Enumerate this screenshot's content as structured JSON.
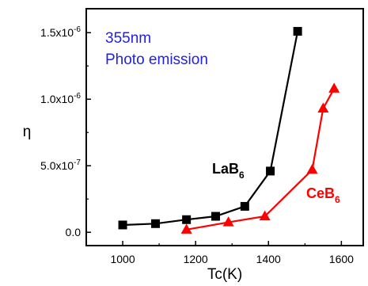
{
  "chart_data": {
    "type": "line",
    "title": "",
    "xlabel": "Tc(K)",
    "ylabel": "η",
    "xlim": [
      900,
      1660
    ],
    "ylim": [
      -1e-07,
      1.68e-06
    ],
    "x_ticks": [
      {
        "value": 1000,
        "label": "1000"
      },
      {
        "value": 1200,
        "label": "1200"
      },
      {
        "value": 1400,
        "label": "1400"
      },
      {
        "value": 1600,
        "label": "1600"
      }
    ],
    "y_ticks": [
      {
        "value": 0,
        "base": "0.0",
        "exp": ""
      },
      {
        "value": 5e-07,
        "base": "5.0x10",
        "exp": "-7"
      },
      {
        "value": 1e-06,
        "base": "1.0x10",
        "exp": "-6"
      },
      {
        "value": 1.5e-06,
        "base": "1.5x10",
        "exp": "-6"
      }
    ],
    "annotation": {
      "line1": "355nm",
      "line2": "Photo emission",
      "color": "#1f1fe6"
    },
    "series": [
      {
        "name": "LaB6",
        "label_main": "LaB",
        "label_sub": "6",
        "color": "#000000",
        "marker": "square",
        "points": [
          {
            "x": 1000,
            "y": 5.5e-08
          },
          {
            "x": 1090,
            "y": 6.5e-08
          },
          {
            "x": 1175,
            "y": 9.5e-08
          },
          {
            "x": 1255,
            "y": 1.2e-07
          },
          {
            "x": 1335,
            "y": 1.95e-07
          },
          {
            "x": 1405,
            "y": 4.6e-07
          },
          {
            "x": 1480,
            "y": 1.51e-06
          }
        ]
      },
      {
        "name": "CeB6",
        "label_main": "CeB",
        "label_sub": "6",
        "color": "#ff0000",
        "marker": "triangle",
        "points": [
          {
            "x": 1175,
            "y": 2e-08
          },
          {
            "x": 1290,
            "y": 7.5e-08
          },
          {
            "x": 1390,
            "y": 1.2e-07
          },
          {
            "x": 1520,
            "y": 4.7e-07
          },
          {
            "x": 1550,
            "y": 9.3e-07
          },
          {
            "x": 1580,
            "y": 1.08e-06
          }
        ]
      }
    ]
  }
}
